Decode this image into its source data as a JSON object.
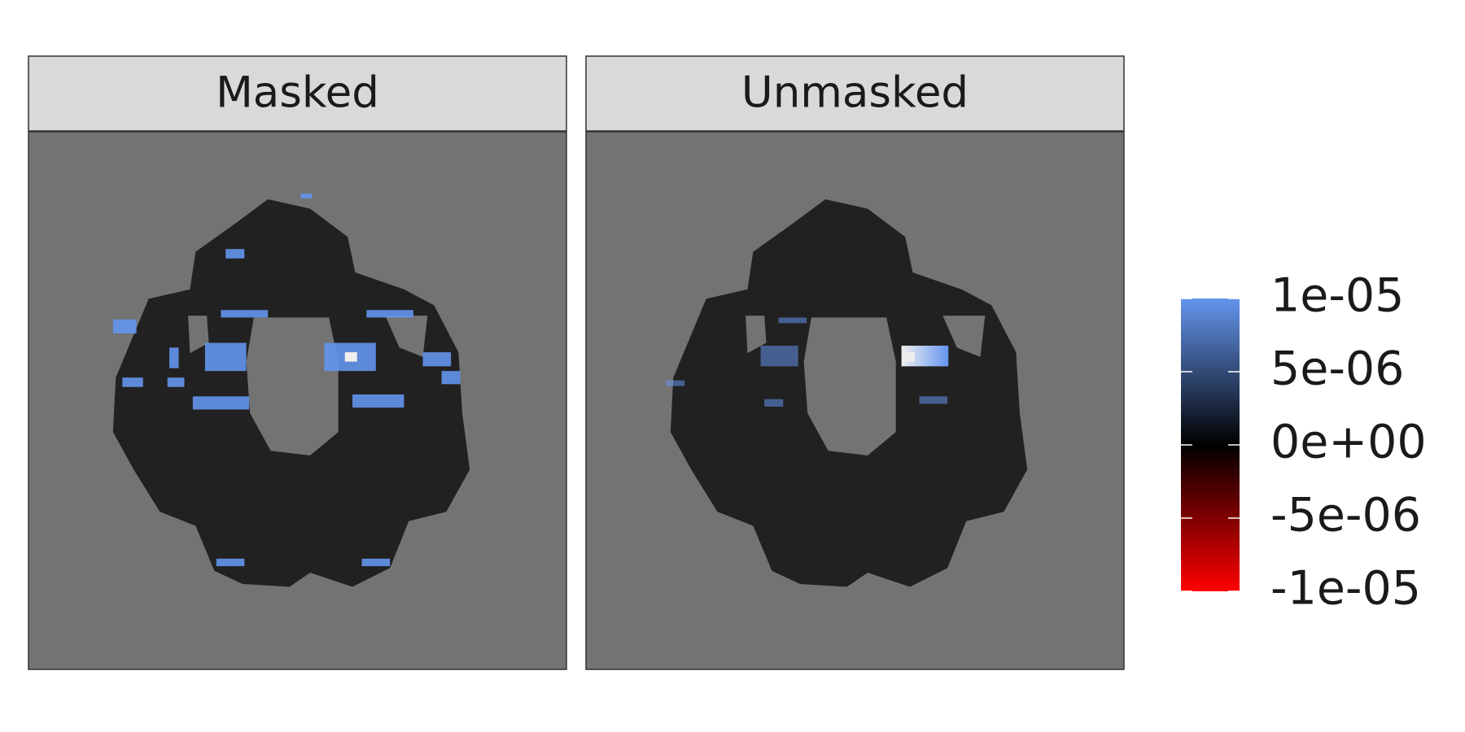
{
  "chart_data": {
    "type": "raster",
    "facets": [
      "Masked",
      "Unmasked"
    ],
    "panel_background": "#737373",
    "strip_background": "#d9d9d9",
    "colorbar": {
      "lim": [
        -1e-05,
        1e-05
      ],
      "low_color": "#ff0000",
      "mid_color": "#000000",
      "high_color": "#6495ed",
      "ticks": [
        {
          "value": 1e-05,
          "label": "1e-05"
        },
        {
          "value": 5e-06,
          "label": "5e-06"
        },
        {
          "value": 0,
          "label": "0e+00"
        },
        {
          "value": -5e-06,
          "label": "-5e-06"
        },
        {
          "value": -1e-05,
          "label": "-1e-05"
        }
      ]
    }
  }
}
